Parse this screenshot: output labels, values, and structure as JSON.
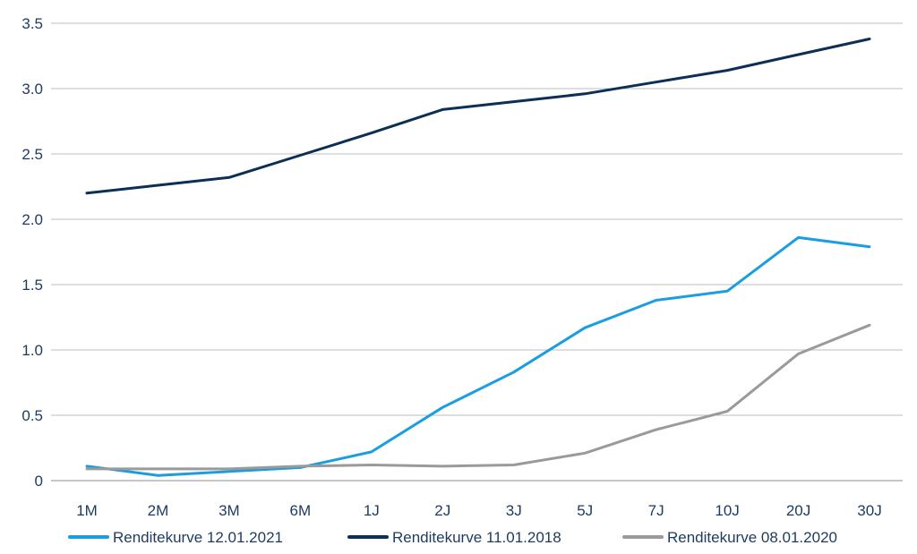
{
  "chart_data": {
    "type": "line",
    "categories": [
      "1M",
      "2M",
      "3M",
      "6M",
      "1J",
      "2J",
      "3J",
      "5J",
      "7J",
      "10J",
      "20J",
      "30J"
    ],
    "ylim": [
      0,
      3.5
    ],
    "yticks": [
      "0",
      "0.5",
      "1.0",
      "1.5",
      "2.0",
      "2.5",
      "3.0",
      "3.5"
    ],
    "ytick_values": [
      0,
      0.5,
      1.0,
      1.5,
      2.0,
      2.5,
      3.0,
      3.5
    ],
    "grid": true,
    "legend_position": "bottom",
    "series": [
      {
        "name": "Renditekurve 12.01.2021",
        "color": "#1a9ee0",
        "values": [
          0.11,
          0.04,
          0.07,
          0.1,
          0.22,
          0.56,
          0.83,
          1.17,
          1.38,
          1.45,
          1.86,
          1.79
        ]
      },
      {
        "name": "Renditekurve 11.01.2018",
        "color": "#0c2f55",
        "values": [
          2.2,
          2.26,
          2.32,
          2.49,
          2.66,
          2.84,
          2.9,
          2.96,
          3.05,
          3.14,
          3.26,
          3.38
        ]
      },
      {
        "name": "Renditekurve 08.01.2020",
        "color": "#9a9a9a",
        "values": [
          0.09,
          0.09,
          0.09,
          0.11,
          0.12,
          0.11,
          0.12,
          0.21,
          0.39,
          0.53,
          0.97,
          1.19
        ]
      }
    ]
  }
}
